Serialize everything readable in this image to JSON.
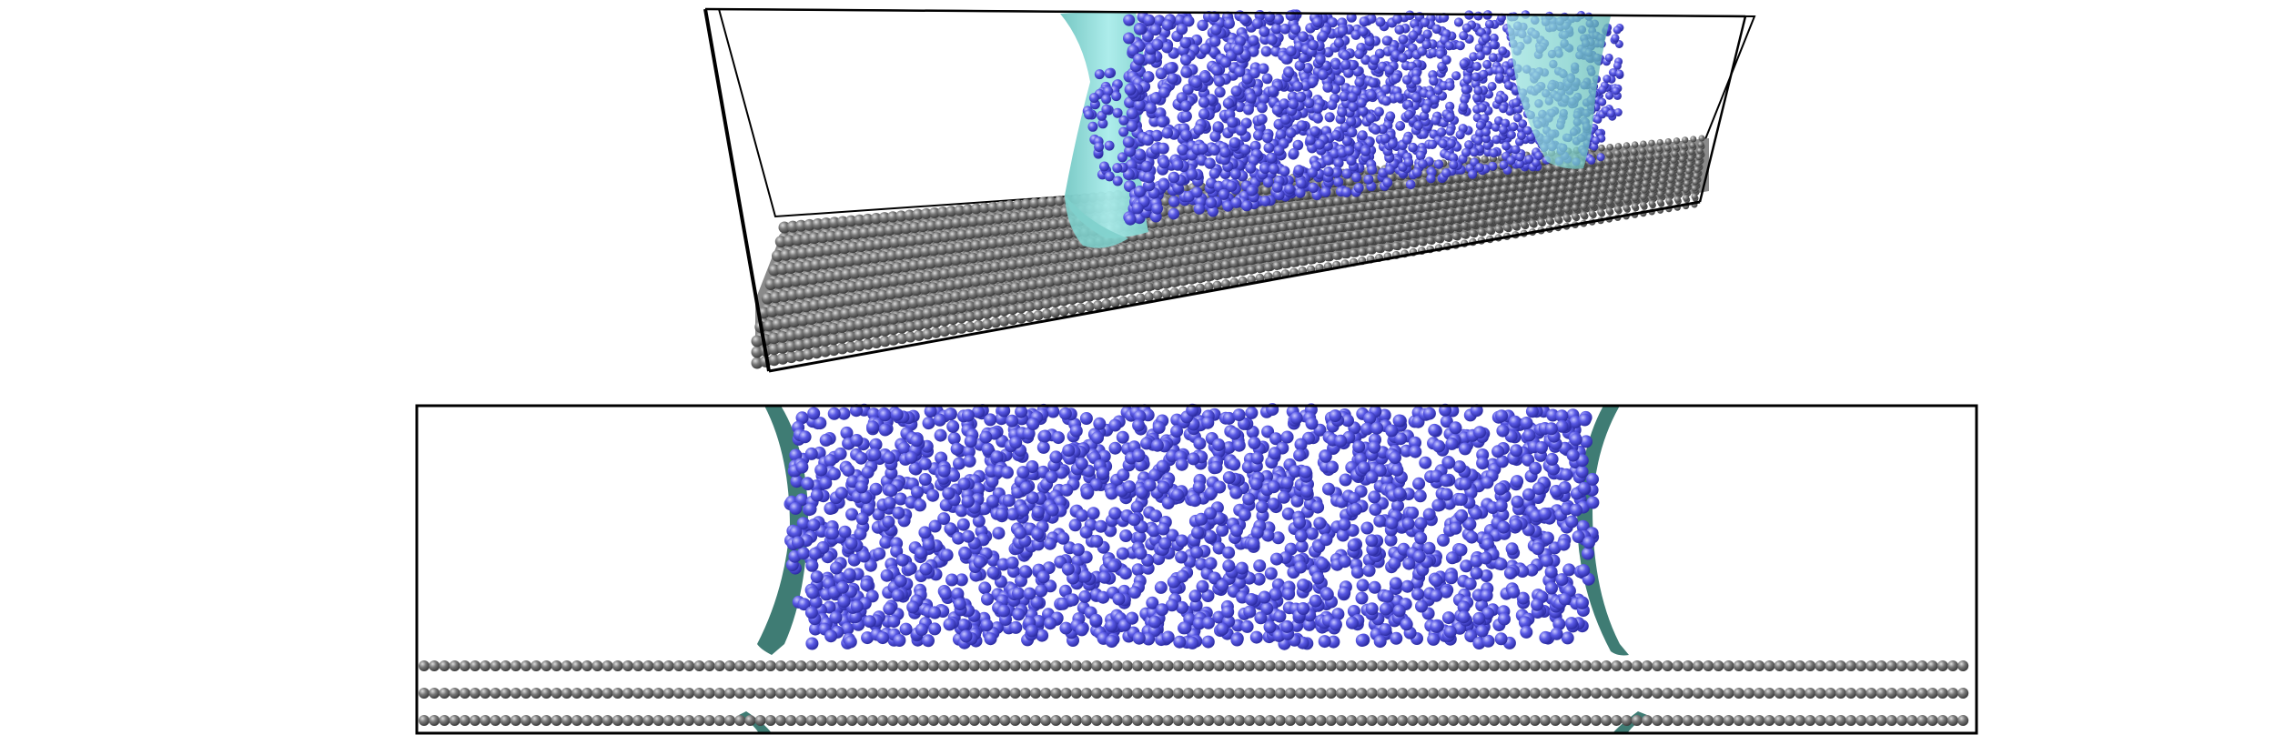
{
  "figure": {
    "panels": [
      {
        "id": "perspective-view",
        "kind": "3d-perspective"
      },
      {
        "id": "side-view",
        "kind": "orthographic-side"
      }
    ],
    "colors": {
      "background": "#ffffff",
      "box_outline": "#000000",
      "liquid_atom": "#5a5ae6",
      "liquid_atom_highlight": "#c8c8ff",
      "liquid_atom_shadow": "#2a2aa0",
      "substrate_atom": "#7a7a7a",
      "substrate_atom_highlight": "#dcdcdc",
      "substrate_atom_shadow": "#3a3a3a",
      "interface_surface_3d": "#8fd9d6",
      "interface_surface_side": "#3f7c74"
    },
    "substrate_layers": 3
  }
}
